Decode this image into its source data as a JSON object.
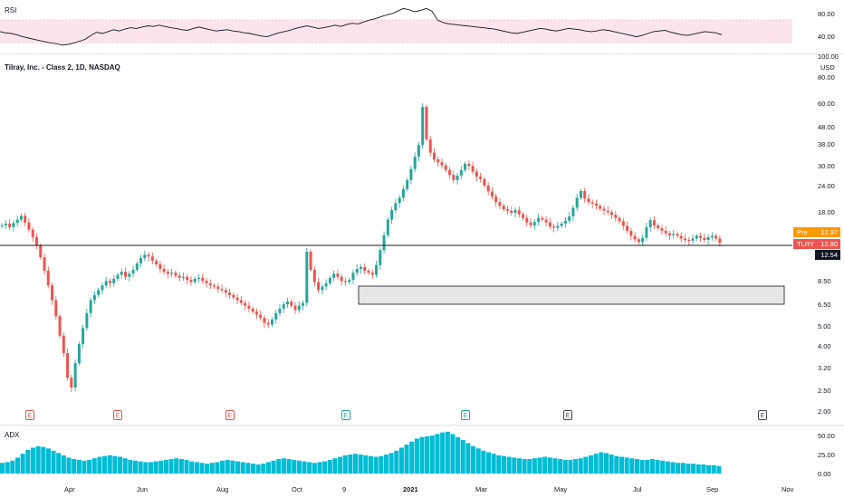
{
  "rsi_label": "RSI",
  "adx_label": "ADX",
  "symbol_title": "Tilray, Inc. - Class 2, 1D, NASDAQ",
  "currency": "USD",
  "rsi_ticks": [
    "80.00",
    "40.00"
  ],
  "price_ticks": [
    "100.00",
    "80.00",
    "60.00",
    "48.00",
    "38.00",
    "30.00",
    "24.00",
    "18.00",
    "8.50",
    "6.50",
    "5.00",
    "4.00",
    "3.20",
    "2.50",
    "2.00"
  ],
  "adx_ticks": [
    "50.00",
    "25.00",
    "0.00"
  ],
  "x_ticks": [
    "Apr",
    "Jun",
    "Aug",
    "Oct",
    "9",
    "2021",
    "Mar",
    "May",
    "Jul",
    "Sep",
    "Nov"
  ],
  "earnings_markers": [
    "E",
    "E",
    "E",
    "E",
    "E",
    "E",
    "E"
  ],
  "pre_tag": {
    "label": "Pre",
    "value": "12.97"
  },
  "last_tag": {
    "label": "TLRY",
    "value": "12.80"
  },
  "line_tag": {
    "value": "12.54"
  },
  "colors": {
    "up": "#26a69a",
    "down": "#ef5350",
    "rsi_band": "#fce4ec",
    "rsi_line": "#131722",
    "adx_fill": "#00bcd4",
    "pre_tag": "#ff9800",
    "last_tag": "#ef5350",
    "line_tag": "#131722"
  },
  "chart_data": [
    {
      "type": "line",
      "name": "RSI",
      "ylim": [
        20,
        90
      ],
      "band": [
        30,
        70
      ],
      "x_ticks": [
        "Apr",
        "Jun",
        "Aug",
        "Oct",
        "9",
        "2021",
        "Mar",
        "May",
        "Jul",
        "Sep"
      ],
      "values": [
        52,
        50,
        49,
        47,
        44,
        42,
        40,
        38,
        36,
        34,
        33,
        31,
        32,
        34,
        37,
        40,
        46,
        51,
        49,
        52,
        55,
        53,
        56,
        58,
        57,
        59,
        61,
        60,
        62,
        60,
        58,
        57,
        55,
        54,
        57,
        59,
        57,
        55,
        53,
        54,
        55,
        53,
        52,
        50,
        49,
        47,
        45,
        44,
        47,
        50,
        52,
        54,
        57,
        59,
        61,
        59,
        57,
        58,
        60,
        62,
        60,
        63,
        65,
        64,
        67,
        70,
        72,
        75,
        78,
        80,
        84,
        88,
        86,
        83,
        85,
        88,
        84,
        70,
        66,
        64,
        63,
        62,
        61,
        60,
        59,
        58,
        57,
        56,
        54,
        52,
        50,
        49,
        51,
        53,
        55,
        57,
        56,
        54,
        53,
        55,
        57,
        56,
        55,
        53,
        52,
        53,
        55,
        54,
        52,
        50,
        48,
        46,
        44,
        46,
        49,
        52,
        53,
        54,
        51,
        49,
        47,
        46,
        48,
        50,
        52,
        51,
        50,
        47
      ]
    },
    {
      "type": "candlestick",
      "name": "Tilray, Inc. - Class 2",
      "scale": "log",
      "ylim": [
        2,
        100
      ],
      "x_ticks": [
        "Apr",
        "Jun",
        "Aug",
        "Oct",
        "9",
        "2021",
        "Mar",
        "May",
        "Jul",
        "Sep",
        "Nov"
      ],
      "close": [
        15.5,
        15.8,
        15.2,
        15.9,
        16.5,
        17.2,
        16.0,
        14.8,
        13.6,
        12.4,
        10.9,
        9.4,
        8.0,
        6.8,
        5.7,
        4.6,
        3.8,
        2.9,
        2.6,
        3.4,
        4.2,
        5.0,
        5.9,
        6.8,
        7.2,
        7.6,
        8.0,
        8.4,
        8.2,
        8.6,
        9.0,
        9.3,
        8.8,
        9.1,
        9.5,
        10.2,
        10.8,
        11.2,
        11.0,
        10.5,
        10.1,
        9.6,
        9.3,
        9.1,
        9.2,
        8.9,
        8.7,
        8.8,
        8.5,
        8.3,
        8.6,
        8.7,
        8.4,
        8.2,
        8.0,
        7.9,
        7.7,
        7.6,
        7.4,
        7.2,
        7.0,
        6.8,
        6.6,
        6.4,
        6.2,
        6.0,
        5.8,
        5.6,
        5.3,
        5.2,
        5.5,
        5.9,
        6.2,
        6.5,
        6.7,
        6.4,
        6.1,
        6.4,
        6.6,
        11.6,
        9.5,
        8.3,
        7.6,
        7.9,
        8.2,
        8.7,
        9.1,
        8.8,
        8.4,
        8.3,
        8.5,
        9.2,
        9.6,
        9.8,
        9.4,
        9.2,
        9.0,
        10.0,
        11.8,
        13.9,
        16.5,
        18.3,
        19.8,
        21.0,
        23.1,
        25.5,
        28.8,
        33.0,
        37.5,
        57.0,
        40.0,
        34.5,
        32.0,
        31.0,
        30.0,
        28.5,
        27.0,
        25.5,
        26.8,
        28.5,
        30.5,
        29.8,
        28.0,
        26.5,
        25.8,
        24.0,
        22.5,
        21.3,
        20.0,
        19.2,
        18.5,
        18.2,
        17.8,
        18.3,
        17.5,
        16.8,
        16.0,
        15.5,
        16.1,
        16.8,
        16.5,
        16.0,
        15.3,
        15.1,
        15.4,
        15.8,
        16.3,
        17.1,
        18.8,
        21.0,
        22.6,
        20.8,
        20.0,
        19.7,
        19.2,
        18.6,
        18.2,
        17.9,
        17.4,
        16.8,
        16.2,
        15.4,
        14.6,
        13.8,
        13.3,
        12.9,
        13.5,
        15.2,
        16.4,
        15.5,
        15.0,
        14.6,
        14.2,
        13.9,
        14.1,
        13.8,
        13.4,
        13.2,
        13.1,
        13.4,
        13.8,
        13.5,
        13.2,
        13.6,
        13.8,
        13.4,
        12.8
      ]
    },
    {
      "type": "area",
      "name": "ADX",
      "ylim": [
        0,
        60
      ],
      "x_ticks": [
        "Apr",
        "Jun",
        "Aug",
        "Oct",
        "9",
        "2021",
        "Mar",
        "May",
        "Jul",
        "Sep",
        "Nov"
      ],
      "values": [
        14,
        15,
        17,
        21,
        26,
        31,
        34,
        36,
        35,
        33,
        30,
        27,
        24,
        21,
        19,
        18,
        17,
        18,
        20,
        22,
        23,
        24,
        23,
        22,
        20,
        18,
        17,
        16,
        15,
        15,
        16,
        17,
        18,
        19,
        20,
        19,
        18,
        16,
        15,
        14,
        13,
        14,
        15,
        17,
        18,
        17,
        16,
        15,
        14,
        13,
        12,
        13,
        15,
        17,
        19,
        20,
        19,
        18,
        17,
        16,
        15,
        14,
        15,
        16,
        18,
        20,
        22,
        24,
        25,
        26,
        25,
        24,
        23,
        22,
        23,
        25,
        27,
        30,
        34,
        38,
        42,
        46,
        48,
        49,
        50,
        52,
        54,
        55,
        52,
        48,
        44,
        40,
        36,
        33,
        30,
        28,
        26,
        24,
        23,
        22,
        21,
        20,
        19,
        19,
        20,
        21,
        22,
        21,
        20,
        19,
        18,
        18,
        19,
        20,
        22,
        24,
        26,
        28,
        27,
        25,
        23,
        22,
        21,
        20,
        19,
        18,
        18,
        19,
        18,
        17,
        16,
        15,
        14,
        14,
        13,
        13,
        12,
        12,
        11,
        11,
        10
      ]
    }
  ]
}
